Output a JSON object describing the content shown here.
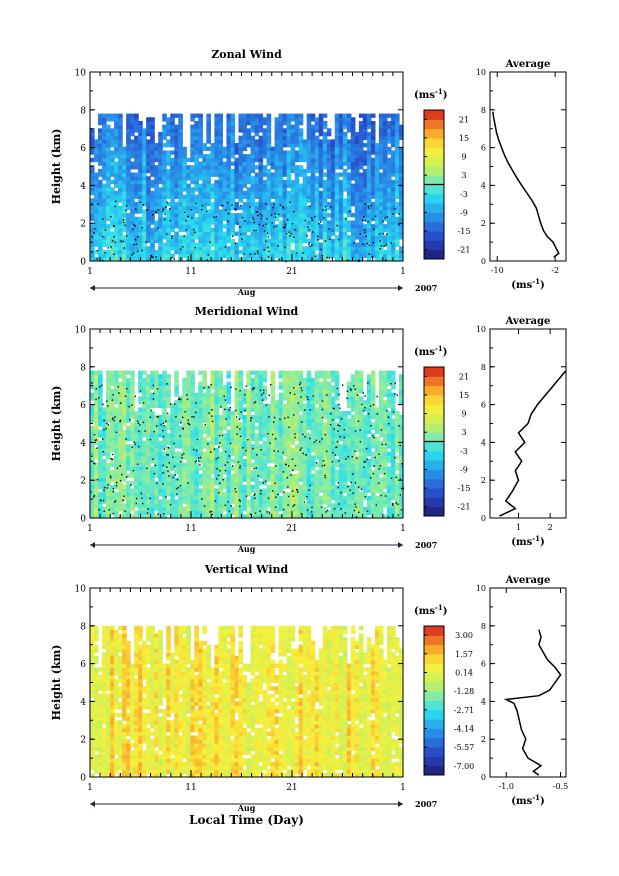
{
  "chart_data": [
    {
      "type": "heatmap",
      "title": "Zonal Wind",
      "xlabel": "Aug",
      "ylabel": "Height (km)",
      "x_ticks": [
        "1",
        "11",
        "21",
        "1"
      ],
      "year_label": "2007",
      "xlim": [
        1,
        32
      ],
      "ylim": [
        0,
        10
      ],
      "y_ticks": [
        "0",
        "2",
        "4",
        "6",
        "8",
        "10"
      ],
      "data_top_km": 7.8,
      "colorbar": {
        "unit": "(ms",
        "unit_exp": "-1",
        "unit_close": ")",
        "ticks": [
          "21",
          "15",
          "9",
          "3",
          "-3",
          "-9",
          "-15",
          "-21"
        ],
        "range": [
          -24,
          24
        ],
        "zero_line": 0
      },
      "field": {
        "mean": -7.5,
        "spread": 5.0,
        "seed": 11
      },
      "profile": {
        "title": "Average",
        "xlabel": "(ms",
        "xlabel_exp": "-1",
        "xlabel_close": ")",
        "x_ticks": [
          -10,
          -2
        ],
        "xlim": [
          -11,
          -0.5
        ],
        "points": [
          [
            -2.2,
            0.2
          ],
          [
            -1.5,
            0.4
          ],
          [
            -1.9,
            0.7
          ],
          [
            -2.3,
            1.0
          ],
          [
            -3.1,
            1.3
          ],
          [
            -3.6,
            1.6
          ],
          [
            -4.0,
            2.0
          ],
          [
            -4.3,
            2.4
          ],
          [
            -4.6,
            2.8
          ],
          [
            -5.2,
            3.2
          ],
          [
            -5.9,
            3.6
          ],
          [
            -6.6,
            4.0
          ],
          [
            -7.3,
            4.4
          ],
          [
            -7.9,
            4.8
          ],
          [
            -8.5,
            5.2
          ],
          [
            -9.0,
            5.6
          ],
          [
            -9.4,
            6.0
          ],
          [
            -9.8,
            6.4
          ],
          [
            -10.1,
            6.8
          ],
          [
            -10.3,
            7.2
          ],
          [
            -10.5,
            7.6
          ],
          [
            -10.6,
            7.9
          ]
        ]
      }
    },
    {
      "type": "heatmap",
      "title": "Meridional Wind",
      "xlabel": "Aug",
      "ylabel": "Height (km)",
      "x_ticks": [
        "1",
        "11",
        "21",
        "1"
      ],
      "year_label": "2007",
      "xlim": [
        1,
        32
      ],
      "ylim": [
        0,
        10
      ],
      "y_ticks": [
        "0",
        "2",
        "4",
        "6",
        "8",
        "10"
      ],
      "data_top_km": 7.8,
      "colorbar": {
        "unit": "(ms",
        "unit_exp": "-1",
        "unit_close": ")",
        "ticks": [
          "21",
          "15",
          "9",
          "3",
          "-3",
          "-9",
          "-15",
          "-21"
        ],
        "range": [
          -24,
          24
        ],
        "zero_line": 0
      },
      "field": {
        "mean": 1.0,
        "spread": 4.5,
        "seed": 23
      },
      "profile": {
        "title": "Average",
        "xlabel": "(ms",
        "xlabel_exp": "-1",
        "xlabel_close": ")",
        "x_ticks": [
          1,
          2
        ],
        "xlim": [
          0.1,
          2.5
        ],
        "points": [
          [
            0.4,
            0.1
          ],
          [
            0.9,
            0.5
          ],
          [
            0.6,
            0.9
          ],
          [
            0.8,
            1.4
          ],
          [
            1.0,
            2.0
          ],
          [
            0.9,
            2.5
          ],
          [
            1.1,
            3.0
          ],
          [
            0.9,
            3.5
          ],
          [
            1.2,
            4.0
          ],
          [
            1.0,
            4.5
          ],
          [
            1.3,
            5.0
          ],
          [
            1.4,
            5.5
          ],
          [
            1.6,
            6.0
          ],
          [
            1.8,
            6.4
          ],
          [
            2.0,
            6.8
          ],
          [
            2.2,
            7.2
          ],
          [
            2.4,
            7.6
          ],
          [
            2.5,
            7.8
          ]
        ]
      }
    },
    {
      "type": "heatmap",
      "title": "Vertical Wind",
      "xlabel": "Aug",
      "x_title": "Local Time (Day)",
      "ylabel": "Height (km)",
      "x_ticks": [
        "1",
        "11",
        "21",
        "1"
      ],
      "year_label": "2007",
      "xlim": [
        1,
        32
      ],
      "ylim": [
        0,
        10
      ],
      "y_ticks": [
        "0",
        "2",
        "4",
        "6",
        "8",
        "10"
      ],
      "data_top_km": 8.0,
      "colorbar": {
        "unit": "(ms",
        "unit_exp": "-1",
        "unit_close": ")",
        "ticks": [
          "3.00",
          "1.57",
          "0.14",
          "-1.28",
          "-2.71",
          "-4.14",
          "-5.57",
          "-7.00"
        ],
        "range": [
          -7.7,
          3.7
        ],
        "zero_line": null
      },
      "field": {
        "mean": 0.6,
        "spread": 1.2,
        "seed": 37
      },
      "profile": {
        "title": "Average",
        "xlabel": "(ms",
        "xlabel_exp": "-1",
        "xlabel_close": ")",
        "x_ticks": [
          -1.0,
          -0.5
        ],
        "x_tick_labels": [
          "-1.0",
          "-0.5"
        ],
        "xlim": [
          -1.15,
          -0.45
        ],
        "points": [
          [
            -0.7,
            0.1
          ],
          [
            -0.75,
            0.3
          ],
          [
            -0.68,
            0.6
          ],
          [
            -0.8,
            1.0
          ],
          [
            -0.85,
            1.5
          ],
          [
            -0.82,
            2.0
          ],
          [
            -0.86,
            2.5
          ],
          [
            -0.88,
            3.0
          ],
          [
            -0.9,
            3.5
          ],
          [
            -0.93,
            3.9
          ],
          [
            -1.0,
            4.1
          ],
          [
            -0.7,
            4.3
          ],
          [
            -0.6,
            4.6
          ],
          [
            -0.55,
            5.0
          ],
          [
            -0.5,
            5.4
          ],
          [
            -0.55,
            5.8
          ],
          [
            -0.62,
            6.2
          ],
          [
            -0.66,
            6.6
          ],
          [
            -0.7,
            7.0
          ],
          [
            -0.68,
            7.4
          ],
          [
            -0.7,
            7.8
          ]
        ]
      }
    }
  ]
}
